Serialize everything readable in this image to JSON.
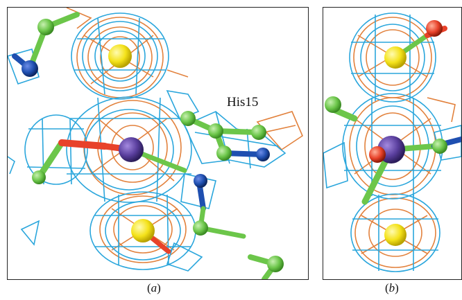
{
  "figure": {
    "panels": [
      {
        "id": "a",
        "caption": "(a)"
      },
      {
        "id": "b",
        "caption": "(b)"
      }
    ],
    "annotations": {
      "residue_label": "His15"
    },
    "colors": {
      "blue_mesh": "#2aa6dc",
      "orange_mesh": "#e2813c",
      "sulfur": "#f4e21a",
      "metal": "#5a3f9e",
      "oxygen": "#e8422a",
      "carbon": "#6cc64a",
      "nitrogen": "#1f4fb0"
    }
  }
}
